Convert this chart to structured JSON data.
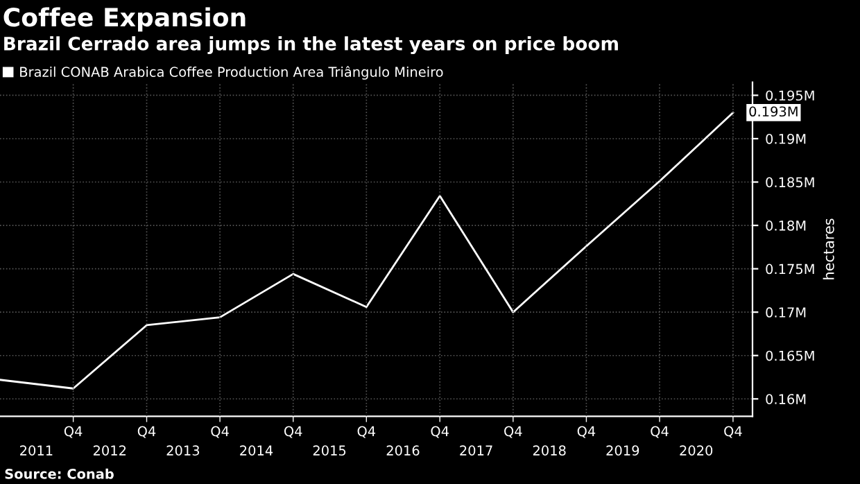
{
  "chart_data": {
    "type": "line",
    "title": "Coffee Expansion",
    "subtitle": "Brazil Cerrado area jumps in the latest years on price boom",
    "ylabel": "hectares",
    "annotations": [
      "Source: Conab"
    ],
    "x": [
      "2010-11-15",
      "2011-11-15",
      "2012-11-15",
      "2013-11-15",
      "2014-11-15",
      "2015-11-15",
      "2016-11-15",
      "2017-11-15",
      "2018-11-15",
      "2019-11-15",
      "2020-11-15"
    ],
    "series": [
      {
        "name": "Brazil CONAB Arabica Coffee Production Area Triângulo Mineiro",
        "color": "#ffffff",
        "values": [
          0.1622,
          0.1612,
          0.1685,
          0.1694,
          0.1744,
          0.1706,
          0.1834,
          0.17,
          0.1776,
          0.1851,
          0.193
        ],
        "value_labels": [
          null,
          null,
          null,
          null,
          null,
          null,
          null,
          null,
          null,
          null,
          "0.193M"
        ]
      }
    ],
    "xlim": [
      "2010-11-15",
      "2021-02-20"
    ],
    "ylim": [
      0.158,
      0.1965
    ],
    "xticks": [
      {
        "value": "2011-05-15",
        "label": "2011"
      },
      {
        "value": "2012-05-15",
        "label": "2012"
      },
      {
        "value": "2013-05-15",
        "label": "2013"
      },
      {
        "value": "2014-05-15",
        "label": "2014"
      },
      {
        "value": "2015-05-15",
        "label": "2015"
      },
      {
        "value": "2016-05-15",
        "label": "2016"
      },
      {
        "value": "2017-05-15",
        "label": "2017"
      },
      {
        "value": "2018-05-15",
        "label": "2018"
      },
      {
        "value": "2019-05-15",
        "label": "2019"
      },
      {
        "value": "2020-05-15",
        "label": "2020"
      }
    ],
    "x2lim": [
      "2010-11-15",
      "2021-02-20"
    ],
    "x2ticks": [
      {
        "value": "2011-11-15",
        "label": "Q4"
      },
      {
        "value": "2012-11-15",
        "label": "Q4"
      },
      {
        "value": "2013-11-15",
        "label": "Q4"
      },
      {
        "value": "2014-11-15",
        "label": "Q4"
      },
      {
        "value": "2015-11-15",
        "label": "Q4"
      },
      {
        "value": "2016-11-15",
        "label": "Q4"
      },
      {
        "value": "2017-11-15",
        "label": "Q4"
      },
      {
        "value": "2018-11-15",
        "label": "Q4"
      },
      {
        "value": "2019-11-15",
        "label": "Q4"
      },
      {
        "value": "2020-11-15",
        "label": "Q4"
      }
    ],
    "yticks": [
      {
        "value": 0.16,
        "label": "0.16M"
      },
      {
        "value": 0.165,
        "label": "0.165M"
      },
      {
        "value": 0.17,
        "label": "0.17M"
      },
      {
        "value": 0.175,
        "label": "0.175M"
      },
      {
        "value": 0.18,
        "label": "0.18M"
      },
      {
        "value": 0.185,
        "label": "0.185M"
      },
      {
        "value": 0.19,
        "label": "0.19M"
      },
      {
        "value": 0.195,
        "label": "0.195M"
      }
    ],
    "grid": true,
    "legend": "top left",
    "marker": "none",
    "line_style": "solid"
  }
}
